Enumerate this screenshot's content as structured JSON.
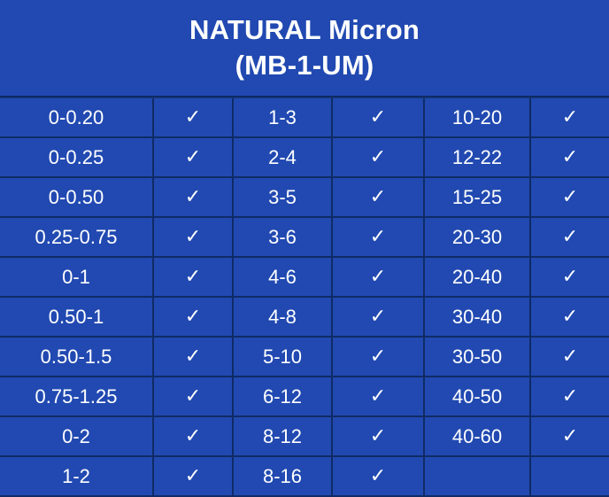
{
  "title": {
    "line1": "NATURAL Micron",
    "line2": "(MB-1-UM)"
  },
  "check_mark": "✓",
  "rows": [
    {
      "c1": "0-0.20",
      "k1": "✓",
      "c2": "1-3",
      "k2": "✓",
      "c3": "10-20",
      "k3": "✓"
    },
    {
      "c1": "0-0.25",
      "k1": "✓",
      "c2": "2-4",
      "k2": "✓",
      "c3": "12-22",
      "k3": "✓"
    },
    {
      "c1": "0-0.50",
      "k1": "✓",
      "c2": "3-5",
      "k2": "✓",
      "c3": "15-25",
      "k3": "✓"
    },
    {
      "c1": "0.25-0.75",
      "k1": "✓",
      "c2": "3-6",
      "k2": "✓",
      "c3": "20-30",
      "k3": "✓"
    },
    {
      "c1": "0-1",
      "k1": "✓",
      "c2": "4-6",
      "k2": "✓",
      "c3": "20-40",
      "k3": "✓"
    },
    {
      "c1": "0.50-1",
      "k1": "✓",
      "c2": "4-8",
      "k2": "✓",
      "c3": "30-40",
      "k3": "✓"
    },
    {
      "c1": "0.50-1.5",
      "k1": "✓",
      "c2": "5-10",
      "k2": "✓",
      "c3": "30-50",
      "k3": "✓"
    },
    {
      "c1": "0.75-1.25",
      "k1": "✓",
      "c2": "6-12",
      "k2": "✓",
      "c3": "40-50",
      "k3": "✓"
    },
    {
      "c1": "0-2",
      "k1": "✓",
      "c2": "8-12",
      "k2": "✓",
      "c3": "40-60",
      "k3": "✓"
    },
    {
      "c1": "1-2",
      "k1": "✓",
      "c2": "8-16",
      "k2": "✓",
      "c3": "",
      "k3": ""
    }
  ],
  "colors": {
    "cell_fill": "#2149b1",
    "grid_line": "#0f2b66",
    "text": "#ffffff"
  }
}
